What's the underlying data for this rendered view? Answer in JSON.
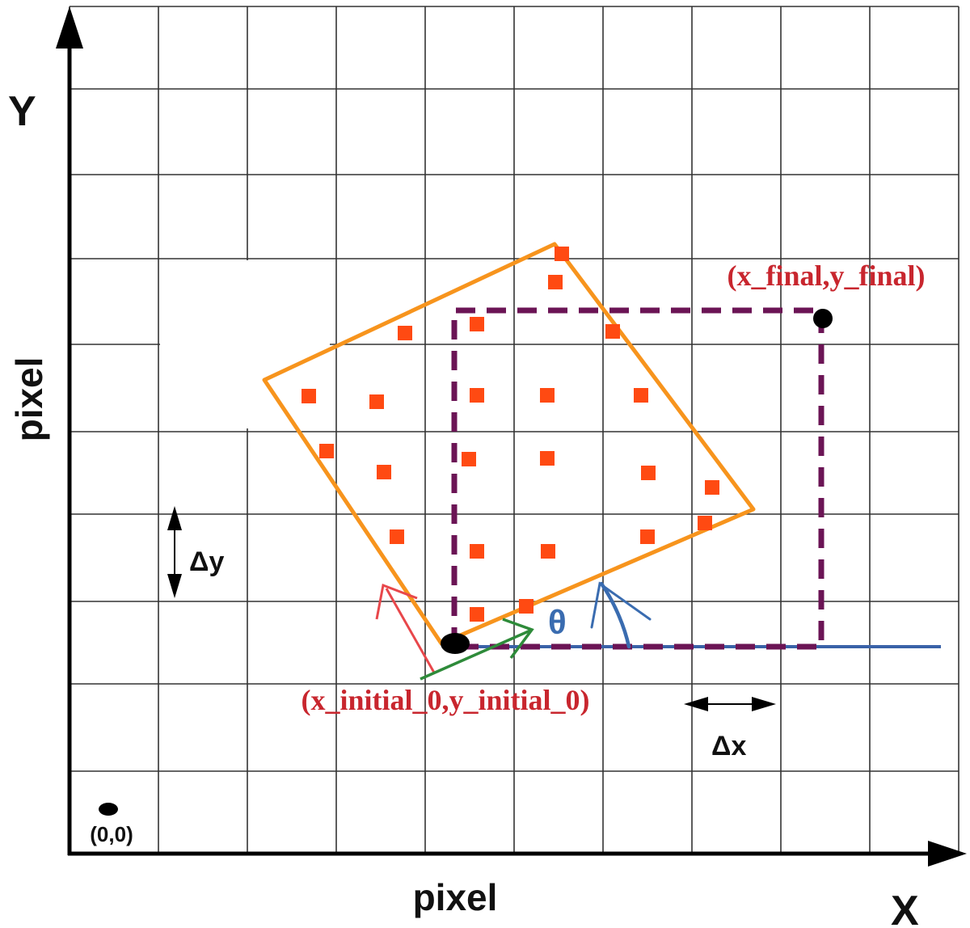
{
  "labels": {
    "y_axis_letter": "Y",
    "x_axis_letter": "X",
    "y_axis_unit": "pixel",
    "x_axis_unit": "pixel",
    "origin": "(0,0)",
    "initial_point": "(x_initial_0,y_initial_0)",
    "final_point": "(x_final,y_final)",
    "theta": "θ",
    "delta_x": "Δx",
    "delta_y": "Δy"
  },
  "colors": {
    "grid": "#333333",
    "axis": "#000000",
    "rotated_square": "#f7941d",
    "dashed_square": "#6b1455",
    "pixel_marker": "#ff4a12",
    "baseline": "#3a62a8",
    "annotation_text": "#c8262e",
    "red_vector": "#e8474b",
    "green_vector": "#2e8b3a",
    "theta": "#3a6cb0"
  },
  "icons": {
    "points": "filled-circle-marker",
    "pixels": "filled-square-marker",
    "arrows": "arrowhead"
  }
}
